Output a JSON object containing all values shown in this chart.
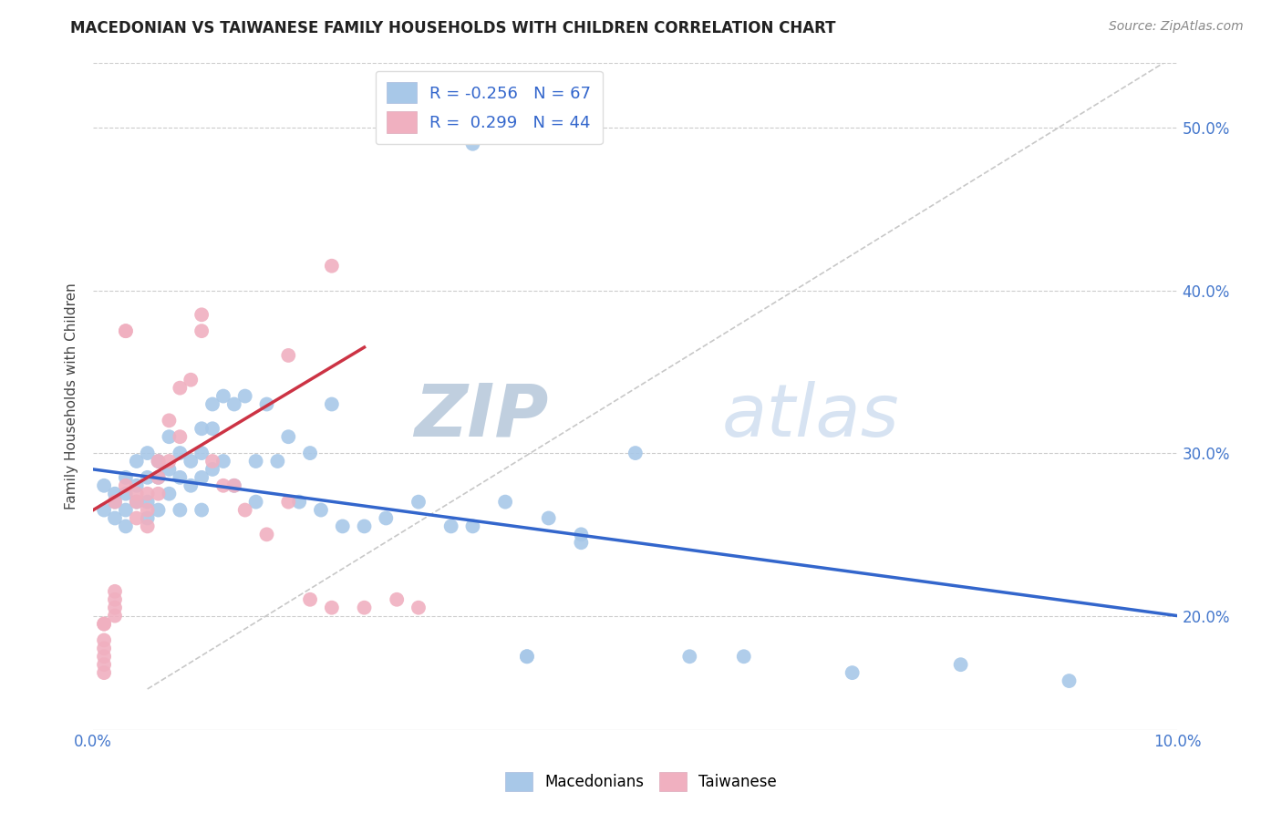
{
  "title": "MACEDONIAN VS TAIWANESE FAMILY HOUSEHOLDS WITH CHILDREN CORRELATION CHART",
  "source": "Source: ZipAtlas.com",
  "ylabel": "Family Households with Children",
  "legend_macedonians": "Macedonians",
  "legend_taiwanese": "Taiwanese",
  "R_macedonians": -0.256,
  "N_macedonians": 67,
  "R_taiwanese": 0.299,
  "N_taiwanese": 44,
  "macedonian_color": "#a8c8e8",
  "taiwanese_color": "#f0b0c0",
  "macedonian_line_color": "#3366cc",
  "taiwanese_line_color": "#cc3344",
  "watermark_zip": "ZIP",
  "watermark_atlas": "atlas",
  "watermark_color": "#d0dff0",
  "xlim": [
    0.0,
    0.1
  ],
  "ylim": [
    0.13,
    0.54
  ],
  "blue_line_x": [
    0.0,
    0.1
  ],
  "blue_line_y": [
    0.29,
    0.2
  ],
  "pink_line_x": [
    0.0,
    0.025
  ],
  "pink_line_y": [
    0.265,
    0.365
  ],
  "diag_line_x": [
    0.005,
    0.1
  ],
  "diag_line_y": [
    0.155,
    0.545
  ],
  "blue_scatter_x": [
    0.001,
    0.001,
    0.002,
    0.002,
    0.002,
    0.003,
    0.003,
    0.003,
    0.003,
    0.004,
    0.004,
    0.004,
    0.005,
    0.005,
    0.005,
    0.005,
    0.006,
    0.006,
    0.006,
    0.007,
    0.007,
    0.007,
    0.008,
    0.008,
    0.008,
    0.009,
    0.009,
    0.01,
    0.01,
    0.01,
    0.01,
    0.011,
    0.011,
    0.011,
    0.012,
    0.012,
    0.013,
    0.013,
    0.014,
    0.015,
    0.015,
    0.016,
    0.017,
    0.018,
    0.019,
    0.02,
    0.021,
    0.022,
    0.023,
    0.025,
    0.027,
    0.03,
    0.033,
    0.035,
    0.038,
    0.04,
    0.042,
    0.045,
    0.05,
    0.055,
    0.06,
    0.07,
    0.08,
    0.09,
    0.035,
    0.04,
    0.045
  ],
  "blue_scatter_y": [
    0.28,
    0.265,
    0.27,
    0.26,
    0.275,
    0.285,
    0.275,
    0.265,
    0.255,
    0.295,
    0.28,
    0.27,
    0.3,
    0.285,
    0.27,
    0.26,
    0.295,
    0.285,
    0.265,
    0.31,
    0.29,
    0.275,
    0.3,
    0.285,
    0.265,
    0.295,
    0.28,
    0.315,
    0.3,
    0.285,
    0.265,
    0.33,
    0.315,
    0.29,
    0.335,
    0.295,
    0.33,
    0.28,
    0.335,
    0.295,
    0.27,
    0.33,
    0.295,
    0.31,
    0.27,
    0.3,
    0.265,
    0.33,
    0.255,
    0.255,
    0.26,
    0.27,
    0.255,
    0.255,
    0.27,
    0.175,
    0.26,
    0.245,
    0.3,
    0.175,
    0.175,
    0.165,
    0.17,
    0.16,
    0.49,
    0.175,
    0.25
  ],
  "pink_scatter_x": [
    0.001,
    0.001,
    0.001,
    0.001,
    0.001,
    0.001,
    0.001,
    0.002,
    0.002,
    0.002,
    0.002,
    0.002,
    0.003,
    0.003,
    0.003,
    0.004,
    0.004,
    0.004,
    0.005,
    0.005,
    0.005,
    0.006,
    0.006,
    0.006,
    0.007,
    0.007,
    0.008,
    0.008,
    0.009,
    0.01,
    0.01,
    0.011,
    0.012,
    0.013,
    0.014,
    0.016,
    0.018,
    0.02,
    0.022,
    0.025,
    0.028,
    0.03,
    0.018,
    0.022
  ],
  "pink_scatter_y": [
    0.195,
    0.195,
    0.185,
    0.18,
    0.175,
    0.17,
    0.165,
    0.27,
    0.215,
    0.21,
    0.205,
    0.2,
    0.375,
    0.375,
    0.28,
    0.275,
    0.27,
    0.26,
    0.275,
    0.265,
    0.255,
    0.295,
    0.285,
    0.275,
    0.32,
    0.295,
    0.34,
    0.31,
    0.345,
    0.385,
    0.375,
    0.295,
    0.28,
    0.28,
    0.265,
    0.25,
    0.27,
    0.21,
    0.205,
    0.205,
    0.21,
    0.205,
    0.36,
    0.415
  ]
}
